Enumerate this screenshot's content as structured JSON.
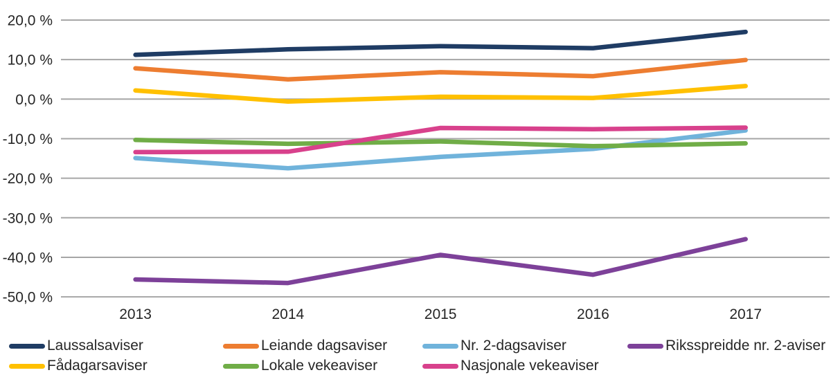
{
  "chart_data": {
    "type": "line",
    "title": "",
    "xlabel": "",
    "ylabel": "",
    "grid": "horizontal-only",
    "legend_position": "bottom",
    "background_color": "#ffffff",
    "gridline_color": "#A6A6A6",
    "text_color": "#262626",
    "categories": [
      "2013",
      "2014",
      "2015",
      "2016",
      "2017"
    ],
    "y_axis": {
      "min": -50,
      "max": 20,
      "step": 10,
      "tick_values": [
        20,
        10,
        0,
        -10,
        -20,
        -30,
        -40,
        -50
      ],
      "tick_labels": [
        "20,0 %",
        "10,0 %",
        "0,0 %",
        "-10,0 %",
        "-20,0 %",
        "-30,0 %",
        "-40,0 %",
        "-50,0 %"
      ]
    },
    "series": [
      {
        "name": "Laussalsaviser",
        "color": "#1F3C64",
        "values": [
          11.2,
          12.6,
          13.4,
          12.9,
          17.0
        ]
      },
      {
        "name": "Leiande dagsaviser",
        "color": "#ED7D31",
        "values": [
          7.8,
          5.0,
          6.8,
          5.8,
          9.9
        ]
      },
      {
        "name": "Nr. 2-dagsaviser",
        "color": "#70B3DB",
        "values": [
          -14.9,
          -17.5,
          -14.6,
          -12.6,
          -7.9
        ]
      },
      {
        "name": "Riksspreidde nr. 2-aviser",
        "color": "#7D4199",
        "values": [
          -45.6,
          -46.5,
          -39.4,
          -44.4,
          -35.4
        ]
      },
      {
        "name": "Fådagarsaviser",
        "color": "#FFC000",
        "values": [
          2.2,
          -0.6,
          0.6,
          0.3,
          3.3
        ]
      },
      {
        "name": "Lokale vekeaviser",
        "color": "#70AD47",
        "values": [
          -10.3,
          -11.3,
          -10.7,
          -11.9,
          -11.2
        ]
      },
      {
        "name": "Nasjonale vekeaviser",
        "color": "#D8418C",
        "values": [
          -13.4,
          -13.3,
          -7.3,
          -7.6,
          -7.2
        ]
      }
    ]
  }
}
